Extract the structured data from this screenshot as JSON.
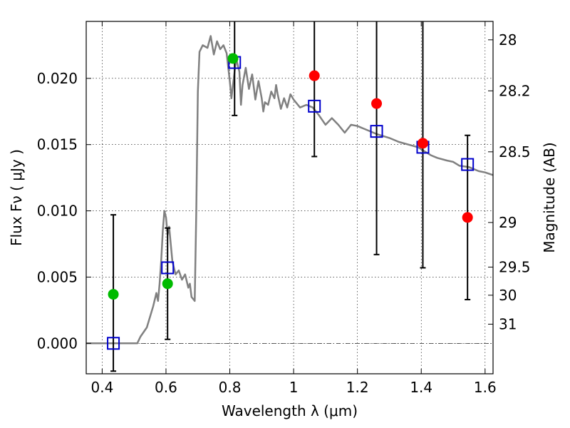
{
  "chart_data": {
    "type": "scatter",
    "xlabel": "Wavelength  λ (μm)",
    "ylabel": "Flux  Fν  ( μJy )",
    "ylabel_right": "Magnitude (AB)",
    "xlim": [
      0.35,
      1.625
    ],
    "ylim": [
      -0.0023,
      0.0243
    ],
    "grid": true,
    "x_ticks": [
      {
        "v": 0.4,
        "label": "0.4"
      },
      {
        "v": 0.6,
        "label": "0.6"
      },
      {
        "v": 0.8,
        "label": "0.8"
      },
      {
        "v": 1.0,
        "label": "1"
      },
      {
        "v": 1.2,
        "label": "1.2"
      },
      {
        "v": 1.4,
        "label": "1.4"
      },
      {
        "v": 1.6,
        "label": "1.6"
      }
    ],
    "y_ticks": [
      {
        "v": 0.0,
        "label": "0.000"
      },
      {
        "v": 0.005,
        "label": "0.005"
      },
      {
        "v": 0.01,
        "label": "0.010"
      },
      {
        "v": 0.015,
        "label": "0.015"
      },
      {
        "v": 0.02,
        "label": "0.020"
      }
    ],
    "right_ticks": [
      {
        "v": 28,
        "label": "28"
      },
      {
        "v": 28.2,
        "label": "28.2"
      },
      {
        "v": 28.5,
        "label": "28.5"
      },
      {
        "v": 29,
        "label": "29"
      },
      {
        "v": 29.5,
        "label": "29.5"
      },
      {
        "v": 30,
        "label": "30"
      },
      {
        "v": 31,
        "label": "31"
      }
    ],
    "series": [
      {
        "kind": "line",
        "color": "#808080",
        "points": [
          [
            0.35,
            0.0
          ],
          [
            0.51,
            0.0
          ],
          [
            0.52,
            0.0005
          ],
          [
            0.54,
            0.0012
          ],
          [
            0.56,
            0.0028
          ],
          [
            0.57,
            0.0038
          ],
          [
            0.575,
            0.0032
          ],
          [
            0.58,
            0.0045
          ],
          [
            0.585,
            0.0062
          ],
          [
            0.59,
            0.0085
          ],
          [
            0.595,
            0.01
          ],
          [
            0.6,
            0.0095
          ],
          [
            0.605,
            0.0082
          ],
          [
            0.61,
            0.0088
          ],
          [
            0.62,
            0.0062
          ],
          [
            0.63,
            0.0052
          ],
          [
            0.64,
            0.0055
          ],
          [
            0.65,
            0.0048
          ],
          [
            0.66,
            0.0052
          ],
          [
            0.67,
            0.0042
          ],
          [
            0.675,
            0.0045
          ],
          [
            0.68,
            0.0035
          ],
          [
            0.69,
            0.0032
          ],
          [
            0.695,
            0.01
          ],
          [
            0.7,
            0.019
          ],
          [
            0.705,
            0.022
          ],
          [
            0.715,
            0.0225
          ],
          [
            0.73,
            0.0223
          ],
          [
            0.74,
            0.0232
          ],
          [
            0.75,
            0.0218
          ],
          [
            0.76,
            0.0228
          ],
          [
            0.77,
            0.0222
          ],
          [
            0.78,
            0.0225
          ],
          [
            0.79,
            0.0219
          ],
          [
            0.8,
            0.0198
          ],
          [
            0.805,
            0.0185
          ],
          [
            0.81,
            0.0195
          ],
          [
            0.82,
            0.0215
          ],
          [
            0.825,
            0.021
          ],
          [
            0.83,
            0.0205
          ],
          [
            0.835,
            0.018
          ],
          [
            0.84,
            0.0195
          ],
          [
            0.85,
            0.0208
          ],
          [
            0.86,
            0.0192
          ],
          [
            0.87,
            0.0203
          ],
          [
            0.88,
            0.0184
          ],
          [
            0.89,
            0.0198
          ],
          [
            0.9,
            0.0185
          ],
          [
            0.905,
            0.0175
          ],
          [
            0.91,
            0.0182
          ],
          [
            0.92,
            0.018
          ],
          [
            0.93,
            0.019
          ],
          [
            0.94,
            0.0185
          ],
          [
            0.945,
            0.0195
          ],
          [
            0.95,
            0.0188
          ],
          [
            0.96,
            0.0177
          ],
          [
            0.97,
            0.0185
          ],
          [
            0.98,
            0.0178
          ],
          [
            0.99,
            0.0188
          ],
          [
            1.0,
            0.0184
          ],
          [
            1.02,
            0.0178
          ],
          [
            1.04,
            0.018
          ],
          [
            1.06,
            0.0178
          ],
          [
            1.08,
            0.0172
          ],
          [
            1.1,
            0.0165
          ],
          [
            1.12,
            0.017
          ],
          [
            1.14,
            0.0165
          ],
          [
            1.16,
            0.0159
          ],
          [
            1.18,
            0.0165
          ],
          [
            1.2,
            0.0164
          ],
          [
            1.22,
            0.0162
          ],
          [
            1.24,
            0.016
          ],
          [
            1.26,
            0.0158
          ],
          [
            1.3,
            0.0155
          ],
          [
            1.33,
            0.0152
          ],
          [
            1.36,
            0.015
          ],
          [
            1.39,
            0.0148
          ],
          [
            1.41,
            0.0145
          ],
          [
            1.43,
            0.0142
          ],
          [
            1.45,
            0.014
          ],
          [
            1.48,
            0.0138
          ],
          [
            1.5,
            0.0137
          ],
          [
            1.52,
            0.0134
          ],
          [
            1.55,
            0.0133
          ],
          [
            1.58,
            0.013
          ],
          [
            1.6,
            0.0129
          ],
          [
            1.625,
            0.0127
          ]
        ]
      },
      {
        "kind": "open-square",
        "color": "#0000cc",
        "points": [
          [
            0.435,
            0.0
          ],
          [
            0.605,
            0.0057
          ],
          [
            0.815,
            0.0212
          ],
          [
            1.065,
            0.0179
          ],
          [
            1.26,
            0.016
          ],
          [
            1.405,
            0.0148
          ],
          [
            1.545,
            0.0135
          ]
        ]
      },
      {
        "kind": "filled-circle",
        "color": "#00bb00",
        "points": [
          [
            0.435,
            0.0037
          ],
          [
            0.605,
            0.0045
          ],
          [
            0.81,
            0.0215
          ]
        ]
      },
      {
        "kind": "filled-circle",
        "color": "#ff0000",
        "points": [
          [
            1.065,
            0.0202
          ],
          [
            1.26,
            0.0181
          ],
          [
            1.405,
            0.0151
          ],
          [
            1.545,
            0.0095
          ]
        ]
      }
    ],
    "error_bars": [
      {
        "x": 0.435,
        "low": -0.0021,
        "high": 0.0097
      },
      {
        "x": 0.605,
        "low": 0.0003,
        "high": 0.0087
      },
      {
        "x": 0.815,
        "low": 0.0172,
        "high": 0.0243
      },
      {
        "x": 1.065,
        "low": 0.0141,
        "high": 0.0243
      },
      {
        "x": 1.26,
        "low": 0.0067,
        "high": 0.0243
      },
      {
        "x": 1.405,
        "low": 0.0057,
        "high": 0.0243
      },
      {
        "x": 1.545,
        "low": 0.0033,
        "high": 0.0157
      }
    ]
  }
}
